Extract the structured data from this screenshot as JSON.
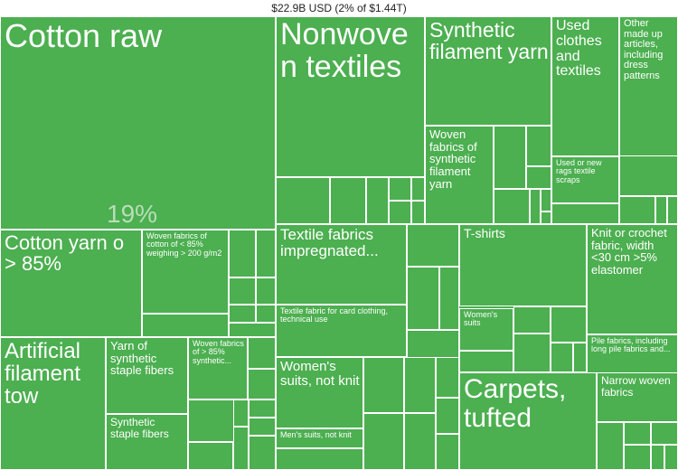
{
  "header": "$22.9B USD (2% of $1.44T)",
  "chart_data": {
    "type": "treemap",
    "title": "$22.9B USD (2% of $1.44T)",
    "color": "#4caf50",
    "highlight_label": "19%",
    "items": [
      {
        "label": "Cotton raw",
        "share_pct": 19
      },
      {
        "label": "Nonwoven textiles"
      },
      {
        "label": "Synthetic filament yarn"
      },
      {
        "label": "Used clothes and textiles"
      },
      {
        "label": "Other made up articles, including dress patterns"
      },
      {
        "label": "Woven fabrics of synthetic filament yarn"
      },
      {
        "label": "Used or new rags textile scraps"
      },
      {
        "label": "Cotton yarn o > 85%"
      },
      {
        "label": "Woven fabrics of cotton of < 85% weighing > 200 g/m2"
      },
      {
        "label": "Textile fabrics impregnated..."
      },
      {
        "label": "T-shirts"
      },
      {
        "label": "Knit or crochet fabric, width <30 cm >5% elastomer"
      },
      {
        "label": "Textile fabric for card clothing, technical use"
      },
      {
        "label": "Women's suits"
      },
      {
        "label": "Pile fabrics, including long pile fabrics and..."
      },
      {
        "label": "Artificial filament tow"
      },
      {
        "label": "Yarn of synthetic staple fibers"
      },
      {
        "label": "Woven fabrics of > 85% synthetic..."
      },
      {
        "label": "Women's suits, not knit"
      },
      {
        "label": "Carpets, tufted"
      },
      {
        "label": "Narrow woven fabrics"
      },
      {
        "label": "Synthetic staple fibers"
      },
      {
        "label": "Men's suits, not knit"
      }
    ]
  }
}
